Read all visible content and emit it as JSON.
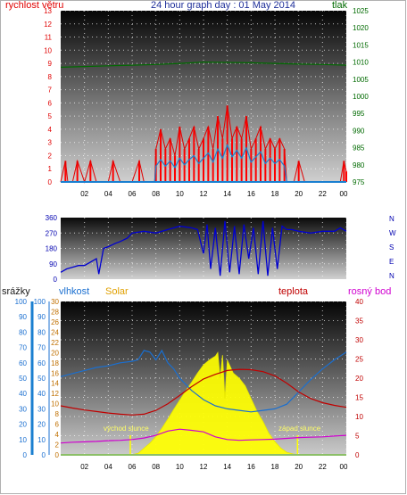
{
  "colors": {
    "wind": "#e00000",
    "gust": "#ff0000",
    "wind_avg": "#1a7fd0",
    "pressure": "#006a00",
    "direction": "#0000d0",
    "rain": "#1a7fd0",
    "humidity": "#1a6fd0",
    "solar": "#ffff00",
    "solar_label": "#e0a000",
    "temperature": "#c00000",
    "dewpoint": "#d000d0",
    "sun_marker": "#ffff00"
  },
  "chart_data": [
    {
      "type": "line",
      "title": "24 hour graph day : 01 May 2014",
      "y_left_label": "rychlost větru",
      "y_right_label": "tlak",
      "x_ticks": [
        "02",
        "04",
        "06",
        "08",
        "10",
        "12",
        "14",
        "16",
        "18",
        "20",
        "22",
        "00"
      ],
      "y_left_ticks": [
        "0",
        "1",
        "2",
        "3",
        "4",
        "5",
        "6",
        "7",
        "8",
        "9",
        "10",
        "11",
        "12",
        "13"
      ],
      "y_right_ticks": [
        "975",
        "980",
        "985",
        "990",
        "995",
        "1000",
        "1005",
        "1010",
        "1015",
        "1020",
        "1025"
      ],
      "y_left_range": [
        0,
        13
      ],
      "y_right_range": [
        975,
        1025
      ],
      "x_range": [
        0,
        24
      ],
      "pressure": {
        "x": [
          0,
          2,
          4,
          6,
          8,
          10,
          11,
          12,
          14,
          16,
          18,
          20,
          22,
          24
        ],
        "y": [
          1008.5,
          1008.7,
          1008.9,
          1009.1,
          1009.3,
          1009.6,
          1009.8,
          1010.0,
          1009.9,
          1009.8,
          1009.6,
          1009.4,
          1009.3,
          1009.1
        ]
      },
      "wind_gust": {
        "x": [
          0,
          0.4,
          0.6,
          1.0,
          1.4,
          2.0,
          2.5,
          3.0,
          3.5,
          4.0,
          4.4,
          5.0,
          5.5,
          6.0,
          6.6,
          7.0,
          7.5,
          7.9,
          8.0,
          8.4,
          8.8,
          9.2,
          9.6,
          10.0,
          10.4,
          10.8,
          11.2,
          11.6,
          12.0,
          12.4,
          12.8,
          13.2,
          13.6,
          14.0,
          14.4,
          14.8,
          15.2,
          15.6,
          16.0,
          16.4,
          16.8,
          17.2,
          17.6,
          18.0,
          18.4,
          18.8,
          19.0,
          19.2,
          19.6,
          20.0,
          20.5,
          21.0,
          21.5,
          22.0,
          22.5,
          23.0,
          23.5,
          23.8,
          24.0
        ],
        "y": [
          0,
          1.6,
          0,
          0,
          1.6,
          0,
          1.6,
          0,
          0,
          0,
          1.6,
          0,
          0,
          0,
          1.6,
          0,
          0,
          0,
          2.5,
          4.0,
          2.5,
          3.3,
          2.0,
          4.2,
          2.5,
          3.3,
          4.2,
          2.5,
          3.3,
          4.2,
          2.5,
          5.0,
          3.3,
          5.8,
          3.3,
          4.2,
          3.3,
          5.0,
          2.5,
          3.3,
          4.2,
          2.5,
          3.3,
          2.5,
          3.3,
          2.5,
          0,
          0,
          0,
          1.6,
          0,
          0,
          0,
          0,
          0,
          0,
          0,
          1.6,
          0.8
        ]
      },
      "wind_avg": {
        "x": [
          0,
          7.9,
          8.0,
          8.4,
          8.8,
          9.2,
          9.6,
          10.0,
          10.4,
          10.8,
          11.2,
          11.6,
          12.0,
          12.4,
          12.8,
          13.2,
          13.6,
          14.0,
          14.4,
          14.8,
          15.2,
          15.6,
          16.0,
          16.4,
          16.8,
          17.2,
          17.6,
          18.0,
          18.4,
          18.8,
          19.0,
          24.0
        ],
        "y": [
          0,
          0,
          1.2,
          1.7,
          1.2,
          1.6,
          1.1,
          1.8,
          1.3,
          1.7,
          2.0,
          1.4,
          1.8,
          2.2,
          1.5,
          2.5,
          1.8,
          2.8,
          1.9,
          2.4,
          1.8,
          2.6,
          1.5,
          1.9,
          2.3,
          1.4,
          1.8,
          1.4,
          1.7,
          1.2,
          0,
          0
        ]
      }
    },
    {
      "type": "line",
      "series_name": "direction",
      "y_ticks": [
        "0",
        "90",
        "180",
        "270",
        "360"
      ],
      "y_range": [
        0,
        360
      ],
      "x_range": [
        0,
        24
      ],
      "compass_labels": [
        "N",
        "W",
        "S",
        "E",
        "N"
      ],
      "direction": {
        "x": [
          0,
          0.5,
          1.0,
          1.5,
          2.0,
          3.0,
          3.2,
          3.6,
          4.0,
          4.6,
          5.0,
          5.6,
          6.0,
          7.0,
          8.0,
          9.0,
          9.5,
          10.0,
          11.0,
          11.5,
          12.0,
          12.3,
          12.6,
          13.0,
          13.4,
          13.8,
          14.2,
          14.6,
          15.0,
          15.4,
          15.8,
          16.2,
          16.6,
          17.0,
          17.4,
          17.8,
          18.2,
          18.6,
          19.0,
          19.4,
          20.0,
          21.0,
          22.0,
          23.0,
          23.5,
          24.0
        ],
        "y": [
          40,
          60,
          70,
          80,
          80,
          120,
          30,
          180,
          190,
          210,
          220,
          240,
          270,
          280,
          270,
          290,
          300,
          310,
          300,
          290,
          150,
          320,
          60,
          300,
          20,
          340,
          40,
          310,
          30,
          320,
          120,
          300,
          30,
          340,
          20,
          300,
          60,
          310,
          290,
          290,
          280,
          270,
          280,
          280,
          300,
          280
        ]
      }
    },
    {
      "type": "line",
      "legend": [
        "srážky",
        "vlhkost",
        "Solar",
        "teplota",
        "rosný bod"
      ],
      "y_left_ticks": [
        "0",
        "10",
        "20",
        "30",
        "40",
        "50",
        "60",
        "70",
        "80",
        "90",
        "100"
      ],
      "y_mid_ticks": [
        "0",
        "2",
        "4",
        "6",
        "8",
        "10",
        "12",
        "14",
        "16",
        "18",
        "20",
        "22",
        "24",
        "26",
        "28",
        "30"
      ],
      "y_right_ticks": [
        "0",
        "5",
        "10",
        "15",
        "20",
        "25",
        "30",
        "35",
        "40"
      ],
      "y_left_range": [
        0,
        100
      ],
      "y_mid_range": [
        0,
        30
      ],
      "y_right_range": [
        0,
        40
      ],
      "x_range": [
        0,
        24
      ],
      "annotations": [
        "východ slunce",
        "západ slunce"
      ],
      "sunrise_hour": 5.85,
      "sunset_hour": 19.9,
      "humidity": {
        "x": [
          0,
          1,
          2,
          3,
          4,
          5,
          6,
          6.5,
          7,
          7.5,
          8,
          8.5,
          9,
          9.5,
          10,
          11,
          12,
          13,
          14,
          15,
          16,
          17,
          18,
          19,
          20,
          21,
          22,
          23,
          24
        ],
        "y": [
          51,
          53,
          55,
          57,
          58,
          60,
          61,
          62,
          68,
          67,
          62,
          68,
          60,
          56,
          50,
          42,
          36,
          32,
          30,
          29,
          28,
          29,
          30,
          33,
          41,
          49,
          56,
          62,
          67
        ]
      },
      "temperature": {
        "x": [
          0,
          1,
          2,
          3,
          4,
          5,
          6,
          7,
          8,
          9,
          10,
          11,
          12,
          13,
          14,
          15,
          16,
          17,
          18,
          19,
          20,
          21,
          22,
          23,
          24
        ],
        "y": [
          12.8,
          12.2,
          11.7,
          11.3,
          10.9,
          10.6,
          10.4,
          10.6,
          11.6,
          13.3,
          15.5,
          17.8,
          19.8,
          21.0,
          22.0,
          22.3,
          22.2,
          21.7,
          20.6,
          18.7,
          16.4,
          14.7,
          13.6,
          12.9,
          12.4
        ]
      },
      "dewpoint": {
        "x": [
          0,
          1,
          2,
          3,
          4,
          5,
          6,
          7,
          8,
          9,
          10,
          11,
          12,
          13,
          14,
          15,
          16,
          17,
          18,
          19,
          20,
          21,
          22,
          23,
          24
        ],
        "y": [
          3.1,
          3.3,
          3.4,
          3.5,
          3.7,
          3.8,
          4.0,
          4.4,
          5.1,
          6.2,
          6.7,
          6.4,
          6.0,
          4.7,
          4.0,
          3.8,
          3.9,
          4.0,
          4.1,
          4.3,
          4.5,
          4.6,
          4.7,
          4.9,
          5.1
        ]
      },
      "solar": {
        "x": [
          0,
          5.9,
          6.5,
          7.0,
          7.5,
          8.0,
          8.5,
          9.0,
          9.5,
          10.0,
          10.5,
          11.0,
          11.5,
          12.0,
          12.5,
          13.0,
          13.2,
          13.4,
          13.6,
          13.8,
          14.0,
          14.5,
          15.0,
          15.5,
          16.0,
          16.5,
          17.0,
          17.5,
          18.0,
          18.5,
          19.0,
          19.5,
          20.0,
          24.0
        ],
        "y": [
          0,
          0,
          0.3,
          1.3,
          2.3,
          3.6,
          5.2,
          7.0,
          8.9,
          10.7,
          12.5,
          14.2,
          16.0,
          17.6,
          18.6,
          19.3,
          20.0,
          15.0,
          19.5,
          11.0,
          18.5,
          16.0,
          15.0,
          13.5,
          11.0,
          8.5,
          6.5,
          4.2,
          2.6,
          1.3,
          0.5,
          0.2,
          0,
          0
        ]
      },
      "rain": {
        "x": [
          0,
          24
        ],
        "y": [
          0,
          0
        ]
      }
    }
  ]
}
